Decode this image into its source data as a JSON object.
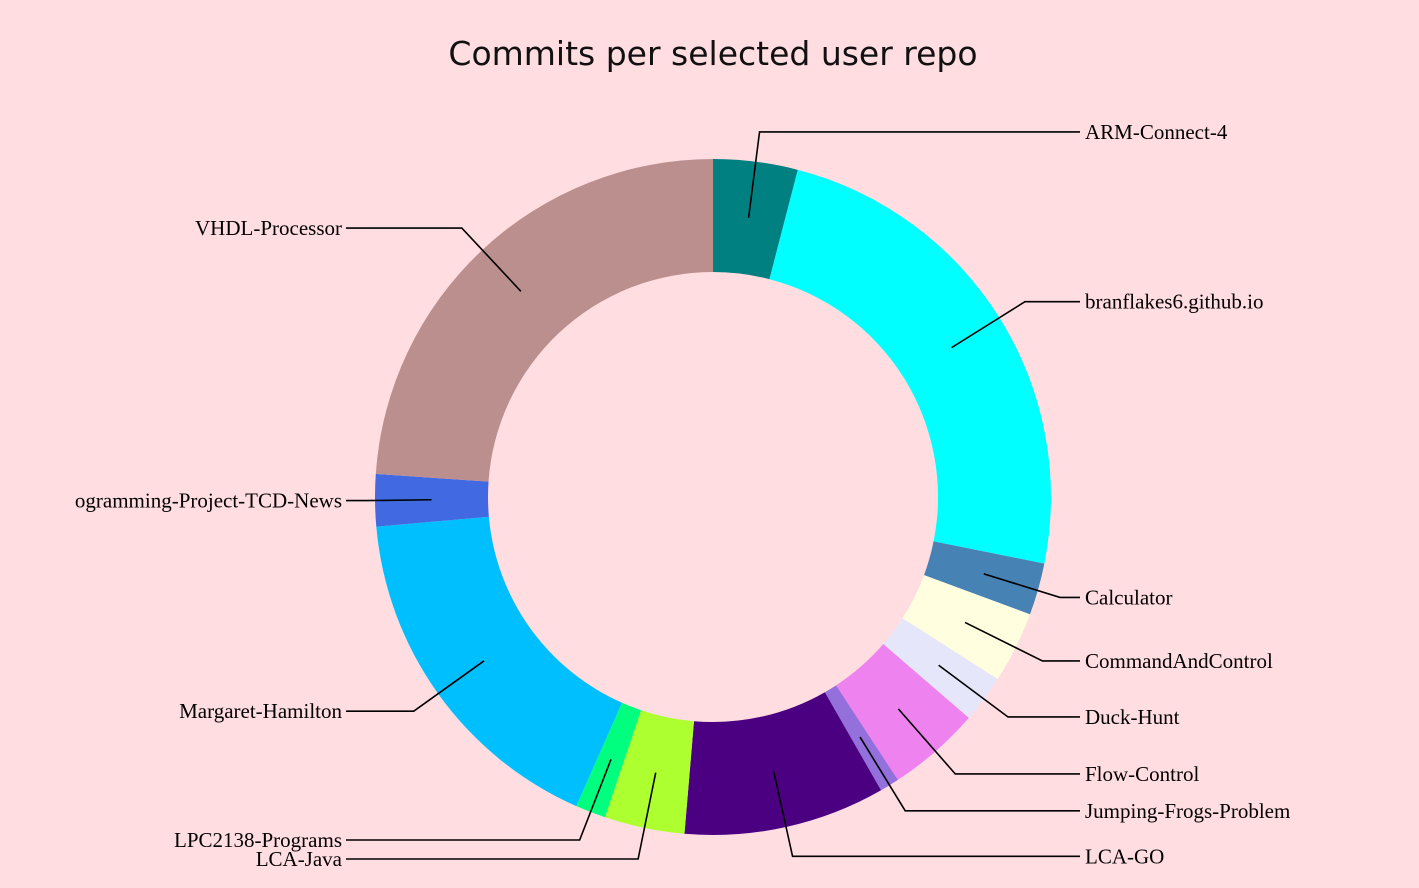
{
  "chart_data": {
    "type": "pie",
    "donut": true,
    "title": "Commits per selected user repo",
    "labels": [
      "ARM-Connect-4",
      "branflakes6.github.io",
      "Calculator",
      "CommandAndControl",
      "Duck-Hunt",
      "Flow-Control",
      "Jumping-Frogs-Problem",
      "LCA-GO",
      "LCA-Java",
      "LPC2138-Programs",
      "Margaret-Hamilton",
      "ogramming-Project-TCD-News",
      "VHDL-Processor"
    ],
    "values": [
      3.9,
      23.3,
      2.4,
      3.3,
      2.2,
      4.3,
      0.9,
      9.3,
      3.7,
      1.4,
      16.4,
      2.4,
      23.1
    ],
    "colors": [
      "#008080",
      "#00ffff",
      "#4682b4",
      "#ffffe0",
      "#e6e6fa",
      "#ee82ee",
      "#9370db",
      "#4b0082",
      "#adff2f",
      "#00ff7f",
      "#00bfff",
      "#4169e1",
      "#bc8f8f"
    ],
    "legend": "none"
  }
}
